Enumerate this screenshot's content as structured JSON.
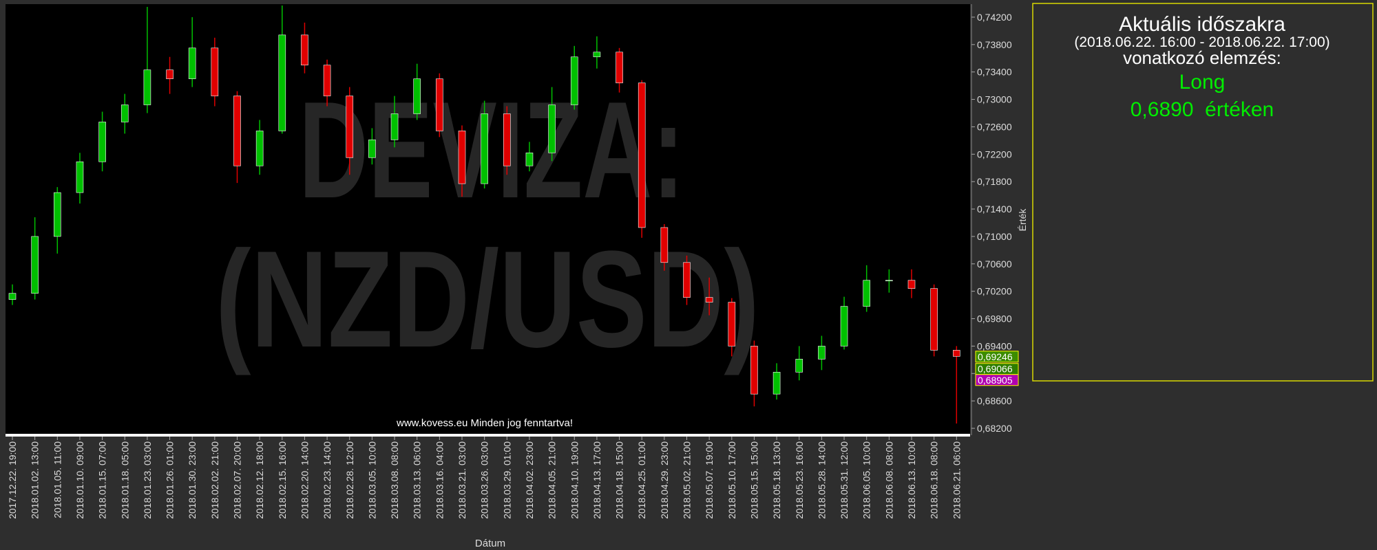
{
  "chart_data": {
    "type": "candlestick",
    "watermark": [
      "DEVIZA:",
      "(NZD/USD)"
    ],
    "footer": "www.kovess.eu Minden jog fenntartva!",
    "xlabel": "Dátum",
    "ylabel": "Érték",
    "up_color": "#00c000",
    "down_color": "#e00000",
    "categories": [
      "2017.12.22. 19:00",
      "2018.01.02. 13:00",
      "2018.01.05. 11:00",
      "2018.01.10. 09:00",
      "2018.01.15. 07:00",
      "2018.01.18. 05:00",
      "2018.01.23. 03:00",
      "2018.01.26. 01:00",
      "2018.01.30. 23:00",
      "2018.02.02. 21:00",
      "2018.02.07. 20:00",
      "2018.02.12. 18:00",
      "2018.02.15. 16:00",
      "2018.02.20. 14:00",
      "2018.02.23. 14:00",
      "2018.02.28. 12:00",
      "2018.03.05. 10:00",
      "2018.03.08. 08:00",
      "2018.03.13. 06:00",
      "2018.03.16. 04:00",
      "2018.03.21. 03:00",
      "2018.03.26. 03:00",
      "2018.03.29. 01:00",
      "2018.04.02. 23:00",
      "2018.04.05. 21:00",
      "2018.04.10. 19:00",
      "2018.04.13. 17:00",
      "2018.04.18. 15:00",
      "2018.04.25. 01:00",
      "2018.04.29. 23:00",
      "2018.05.02. 21:00",
      "2018.05.07. 19:00",
      "2018.05.10. 17:00",
      "2018.05.15. 15:00",
      "2018.05.18. 13:00",
      "2018.05.23. 16:00",
      "2018.05.28. 14:00",
      "2018.05.31. 12:00",
      "2018.06.05. 10:00",
      "2018.06.08. 08:00",
      "2018.06.13. 10:00",
      "2018.06.18. 08:00",
      "2018.06.21. 06:00"
    ],
    "open": [
      0.7008,
      0.7017,
      0.71,
      0.7164,
      0.7209,
      0.7267,
      0.7292,
      0.7343,
      0.733,
      0.7375,
      0.7305,
      0.7203,
      0.7254,
      0.7394,
      0.735,
      0.7305,
      0.7215,
      0.7241,
      0.7279,
      0.733,
      0.7254,
      0.7177,
      0.7279,
      0.7203,
      0.7222,
      0.7292,
      0.7362,
      0.7369,
      0.7324,
      0.7113,
      0.7062,
      0.7011,
      0.7004,
      0.694,
      0.687,
      0.6902,
      0.6921,
      0.694,
      0.6998,
      0.7036,
      0.7036,
      0.7024,
      0.6934
    ],
    "high": [
      0.703,
      0.7128,
      0.7172,
      0.7222,
      0.7282,
      0.7308,
      0.7435,
      0.7362,
      0.742,
      0.739,
      0.7312,
      0.727,
      0.7437,
      0.7412,
      0.7358,
      0.7318,
      0.7258,
      0.7305,
      0.7352,
      0.7338,
      0.7262,
      0.7298,
      0.729,
      0.7238,
      0.7318,
      0.7378,
      0.7392,
      0.7375,
      0.7328,
      0.7118,
      0.7072,
      0.704,
      0.701,
      0.6948,
      0.6915,
      0.694,
      0.6955,
      0.7012,
      0.7058,
      0.7052,
      0.7052,
      0.703,
      0.694
    ],
    "low": [
      0.7,
      0.7008,
      0.7075,
      0.7148,
      0.7195,
      0.725,
      0.728,
      0.7308,
      0.7318,
      0.729,
      0.7178,
      0.719,
      0.725,
      0.7338,
      0.729,
      0.719,
      0.7205,
      0.723,
      0.727,
      0.7245,
      0.7158,
      0.717,
      0.719,
      0.7195,
      0.721,
      0.7285,
      0.7345,
      0.731,
      0.7098,
      0.705,
      0.7,
      0.6985,
      0.6925,
      0.6852,
      0.6862,
      0.689,
      0.6905,
      0.6935,
      0.699,
      0.7018,
      0.701,
      0.6925,
      0.6827
    ],
    "close": [
      0.7017,
      0.71,
      0.7164,
      0.7209,
      0.7267,
      0.7292,
      0.7343,
      0.733,
      0.7375,
      0.7305,
      0.7203,
      0.7254,
      0.7394,
      0.735,
      0.7305,
      0.7215,
      0.7241,
      0.7279,
      0.733,
      0.7254,
      0.7177,
      0.7279,
      0.7203,
      0.7222,
      0.7292,
      0.7362,
      0.7369,
      0.7324,
      0.7113,
      0.7062,
      0.7011,
      0.7004,
      0.694,
      0.687,
      0.6902,
      0.6921,
      0.694,
      0.6998,
      0.7036,
      0.7036,
      0.7024,
      0.6934,
      0.6925
    ],
    "ylim": [
      0.6812,
      0.7439
    ],
    "yticks": [
      {
        "value": 0.682,
        "label": "0,68200"
      },
      {
        "value": 0.686,
        "label": "0,68600"
      },
      {
        "value": 0.69,
        "label": "0,69000"
      },
      {
        "value": 0.694,
        "label": "0,69400"
      },
      {
        "value": 0.698,
        "label": "0,69800"
      },
      {
        "value": 0.702,
        "label": "0,70200"
      },
      {
        "value": 0.706,
        "label": "0,70600"
      },
      {
        "value": 0.71,
        "label": "0,71000"
      },
      {
        "value": 0.714,
        "label": "0,71400"
      },
      {
        "value": 0.718,
        "label": "0,71800"
      },
      {
        "value": 0.722,
        "label": "0,72200"
      },
      {
        "value": 0.726,
        "label": "0,72600"
      },
      {
        "value": 0.73,
        "label": "0,73000"
      },
      {
        "value": 0.734,
        "label": "0,73400"
      },
      {
        "value": 0.738,
        "label": "0,73800"
      },
      {
        "value": 0.742,
        "label": "0,74200"
      }
    ],
    "price_tags": [
      {
        "value": 0.69246,
        "label": "0,69246",
        "color": "#3c8c00"
      },
      {
        "value": 0.69066,
        "label": "0,69066",
        "color": "#2e7d00"
      },
      {
        "value": 0.68905,
        "label": "0,68905",
        "color": "#b000b0"
      }
    ]
  },
  "panel": {
    "title": "Aktuális időszakra",
    "period": "(2018.06.22. 16:00 - 2018.06.22. 17:00)",
    "subtitle": "vonatkozó elemzés:",
    "signal": "Long",
    "level": "0,6890  értéken"
  }
}
